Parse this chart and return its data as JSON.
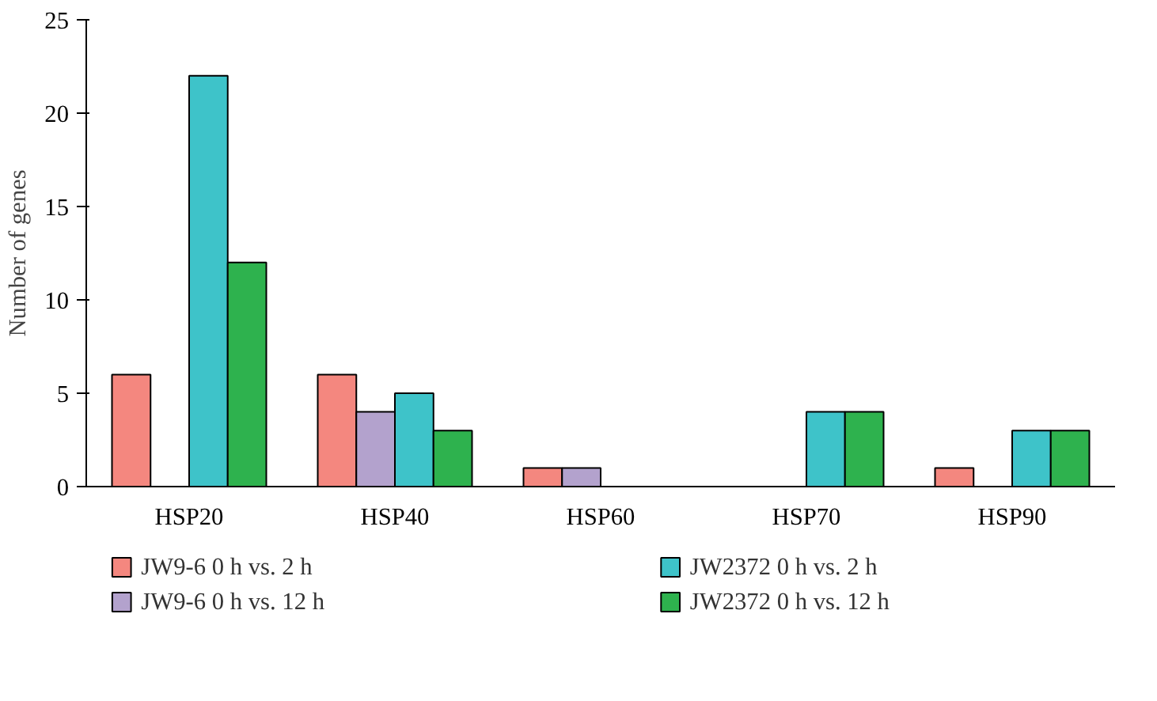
{
  "chart_data": {
    "type": "bar",
    "ylabel": "Number of genes",
    "categories": [
      "HSP20",
      "HSP40",
      "HSP60",
      "HSP70",
      "HSP90"
    ],
    "series": [
      {
        "name": "JW9-6 0 h vs. 2 h",
        "color": "#f4877f",
        "values": [
          6,
          6,
          1,
          null,
          1
        ]
      },
      {
        "name": "JW9-6 0 h vs. 12 h",
        "color": "#b3a2cd",
        "values": [
          null,
          4,
          1,
          null,
          null
        ]
      },
      {
        "name": "JW2372 0 h vs. 2 h",
        "color": "#3ec3c9",
        "values": [
          22,
          5,
          null,
          4,
          3
        ]
      },
      {
        "name": "JW2372 0 h vs. 12 h",
        "color": "#2eb24e",
        "values": [
          12,
          3,
          null,
          4,
          3
        ]
      }
    ],
    "ylim": [
      0,
      25
    ],
    "yticks": [
      0,
      5,
      10,
      15,
      20,
      25
    ],
    "grid": false,
    "legend": "bottom"
  }
}
